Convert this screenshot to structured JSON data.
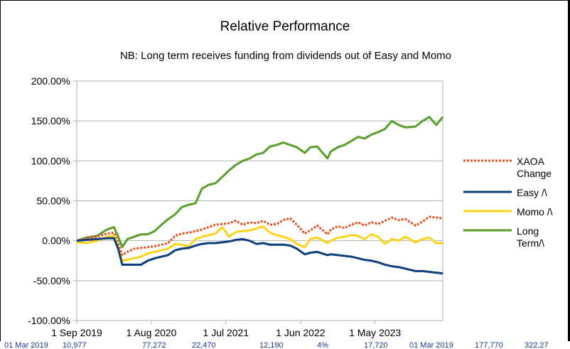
{
  "chart_data": {
    "type": "line",
    "title": "Relative Performance",
    "subtitle": "NB: Long term receives funding from dividends out of Easy and Momo",
    "xlabel": "",
    "ylabel": "",
    "x_ticks": [
      "1 Sep 2019",
      "1 Aug 2020",
      "1 Jul 2021",
      "1 Jun 2022",
      "1 May 2023"
    ],
    "y_ticks": [
      "-100.00%",
      "-50.00%",
      "0.00%",
      "50.00%",
      "100.00%",
      "150.00%",
      "200.00%"
    ],
    "ylim": [
      -100,
      200
    ],
    "x_range": [
      "2019-09-01",
      "2024-02-29"
    ],
    "grid": "horizontal",
    "legend_position": "right",
    "series": [
      {
        "name": "XAOA Change",
        "color": "#e8501e",
        "style": "dotted",
        "points": [
          [
            "2019-09-01",
            0
          ],
          [
            "2019-10-15",
            3
          ],
          [
            "2019-12-01",
            5
          ],
          [
            "2020-01-15",
            9
          ],
          [
            "2020-02-15",
            10
          ],
          [
            "2020-03-05",
            -3
          ],
          [
            "2020-03-23",
            -18
          ],
          [
            "2020-04-15",
            -14
          ],
          [
            "2020-05-15",
            -10
          ],
          [
            "2020-06-15",
            -9
          ],
          [
            "2020-07-15",
            -8
          ],
          [
            "2020-08-15",
            -7
          ],
          [
            "2020-09-15",
            -5
          ],
          [
            "2020-10-15",
            -3
          ],
          [
            "2020-11-15",
            6
          ],
          [
            "2020-12-15",
            9
          ],
          [
            "2021-01-15",
            10
          ],
          [
            "2021-02-15",
            12
          ],
          [
            "2021-03-15",
            14
          ],
          [
            "2021-04-15",
            17
          ],
          [
            "2021-05-15",
            20
          ],
          [
            "2021-06-15",
            21
          ],
          [
            "2021-07-15",
            22
          ],
          [
            "2021-08-15",
            25
          ],
          [
            "2021-09-15",
            20
          ],
          [
            "2021-10-15",
            23
          ],
          [
            "2021-11-15",
            22
          ],
          [
            "2021-12-15",
            25
          ],
          [
            "2022-01-15",
            20
          ],
          [
            "2022-02-15",
            21
          ],
          [
            "2022-03-15",
            26
          ],
          [
            "2022-04-15",
            28
          ],
          [
            "2022-05-15",
            20
          ],
          [
            "2022-06-20",
            9
          ],
          [
            "2022-07-15",
            13
          ],
          [
            "2022-08-15",
            19
          ],
          [
            "2022-09-30",
            8
          ],
          [
            "2022-10-15",
            14
          ],
          [
            "2022-11-15",
            18
          ],
          [
            "2022-12-15",
            16
          ],
          [
            "2023-01-15",
            20
          ],
          [
            "2023-02-15",
            23
          ],
          [
            "2023-03-15",
            19
          ],
          [
            "2023-04-15",
            23
          ],
          [
            "2023-05-15",
            21
          ],
          [
            "2023-06-15",
            25
          ],
          [
            "2023-07-15",
            29
          ],
          [
            "2023-08-15",
            26
          ],
          [
            "2023-09-15",
            27
          ],
          [
            "2023-10-30",
            19
          ],
          [
            "2023-11-30",
            24
          ],
          [
            "2023-12-31",
            30
          ],
          [
            "2024-01-31",
            29
          ],
          [
            "2024-02-29",
            28
          ]
        ]
      },
      {
        "name": "Easy /\\",
        "color": "#0d3d7a",
        "style": "solid",
        "points": [
          [
            "2019-09-01",
            0
          ],
          [
            "2019-10-15",
            1
          ],
          [
            "2019-12-01",
            2
          ],
          [
            "2020-01-15",
            3
          ],
          [
            "2020-02-15",
            3
          ],
          [
            "2020-03-05",
            -10
          ],
          [
            "2020-03-23",
            -30
          ],
          [
            "2020-04-15",
            -30
          ],
          [
            "2020-05-15",
            -30
          ],
          [
            "2020-06-15",
            -30
          ],
          [
            "2020-07-15",
            -25
          ],
          [
            "2020-08-15",
            -22
          ],
          [
            "2020-09-15",
            -20
          ],
          [
            "2020-10-15",
            -18
          ],
          [
            "2020-11-15",
            -12
          ],
          [
            "2020-12-15",
            -10
          ],
          [
            "2021-01-15",
            -9
          ],
          [
            "2021-02-15",
            -6
          ],
          [
            "2021-03-15",
            -4
          ],
          [
            "2021-04-15",
            -3
          ],
          [
            "2021-05-15",
            -3
          ],
          [
            "2021-06-15",
            -2
          ],
          [
            "2021-07-15",
            -1
          ],
          [
            "2021-08-15",
            1
          ],
          [
            "2021-09-15",
            2
          ],
          [
            "2021-10-15",
            0
          ],
          [
            "2021-11-15",
            -4
          ],
          [
            "2021-12-15",
            -3
          ],
          [
            "2022-01-15",
            -5
          ],
          [
            "2022-02-15",
            -5
          ],
          [
            "2022-03-15",
            -5
          ],
          [
            "2022-04-15",
            -6
          ],
          [
            "2022-05-15",
            -10
          ],
          [
            "2022-06-20",
            -17
          ],
          [
            "2022-07-15",
            -15
          ],
          [
            "2022-08-15",
            -14
          ],
          [
            "2022-09-30",
            -18
          ],
          [
            "2022-10-15",
            -17
          ],
          [
            "2022-11-15",
            -18
          ],
          [
            "2022-12-15",
            -19
          ],
          [
            "2023-01-15",
            -20
          ],
          [
            "2023-02-15",
            -22
          ],
          [
            "2023-03-15",
            -24
          ],
          [
            "2023-04-15",
            -25
          ],
          [
            "2023-05-15",
            -27
          ],
          [
            "2023-06-15",
            -30
          ],
          [
            "2023-07-15",
            -32
          ],
          [
            "2023-08-15",
            -33
          ],
          [
            "2023-09-15",
            -35
          ],
          [
            "2023-10-30",
            -38
          ],
          [
            "2023-11-30",
            -38
          ],
          [
            "2023-12-31",
            -39
          ],
          [
            "2024-01-31",
            -40
          ],
          [
            "2024-02-29",
            -41
          ]
        ]
      },
      {
        "name": "Momo /\\",
        "color": "#ffd21a",
        "style": "solid",
        "points": [
          [
            "2019-09-01",
            -2
          ],
          [
            "2019-10-15",
            -3
          ],
          [
            "2019-12-01",
            0
          ],
          [
            "2020-01-15",
            5
          ],
          [
            "2020-02-15",
            6
          ],
          [
            "2020-03-05",
            -10
          ],
          [
            "2020-03-23",
            -25
          ],
          [
            "2020-04-15",
            -24
          ],
          [
            "2020-05-15",
            -22
          ],
          [
            "2020-06-15",
            -20
          ],
          [
            "2020-07-15",
            -16
          ],
          [
            "2020-08-15",
            -14
          ],
          [
            "2020-09-15",
            -12
          ],
          [
            "2020-10-15",
            -10
          ],
          [
            "2020-11-15",
            -4
          ],
          [
            "2020-12-15",
            -5
          ],
          [
            "2021-01-15",
            -7
          ],
          [
            "2021-02-15",
            2
          ],
          [
            "2021-03-15",
            5
          ],
          [
            "2021-04-15",
            7
          ],
          [
            "2021-05-15",
            9
          ],
          [
            "2021-06-15",
            17
          ],
          [
            "2021-07-15",
            5
          ],
          [
            "2021-08-15",
            11
          ],
          [
            "2021-09-15",
            12
          ],
          [
            "2021-10-15",
            13
          ],
          [
            "2021-11-15",
            15
          ],
          [
            "2021-12-15",
            18
          ],
          [
            "2022-01-15",
            10
          ],
          [
            "2022-02-15",
            7
          ],
          [
            "2022-03-15",
            5
          ],
          [
            "2022-04-15",
            2
          ],
          [
            "2022-05-15",
            -4
          ],
          [
            "2022-06-20",
            -8
          ],
          [
            "2022-07-15",
            2
          ],
          [
            "2022-08-15",
            4
          ],
          [
            "2022-09-30",
            -3
          ],
          [
            "2022-10-15",
            0
          ],
          [
            "2022-11-15",
            4
          ],
          [
            "2022-12-15",
            5
          ],
          [
            "2023-01-15",
            7
          ],
          [
            "2023-02-15",
            6
          ],
          [
            "2023-03-15",
            2
          ],
          [
            "2023-04-15",
            8
          ],
          [
            "2023-05-15",
            5
          ],
          [
            "2023-06-15",
            -4
          ],
          [
            "2023-07-15",
            2
          ],
          [
            "2023-08-15",
            0
          ],
          [
            "2023-09-15",
            5
          ],
          [
            "2023-10-30",
            -2
          ],
          [
            "2023-11-30",
            2
          ],
          [
            "2023-12-31",
            4
          ],
          [
            "2024-01-31",
            -3
          ],
          [
            "2024-02-29",
            -3
          ]
        ]
      },
      {
        "name": "Long Term/\\",
        "color": "#5a9e2a",
        "style": "solid",
        "points": [
          [
            "2019-09-01",
            0
          ],
          [
            "2019-10-15",
            4
          ],
          [
            "2019-12-01",
            6
          ],
          [
            "2020-01-15",
            14
          ],
          [
            "2020-02-15",
            17
          ],
          [
            "2020-03-05",
            5
          ],
          [
            "2020-03-23",
            -8
          ],
          [
            "2020-04-15",
            2
          ],
          [
            "2020-05-15",
            5
          ],
          [
            "2020-06-15",
            8
          ],
          [
            "2020-07-15",
            8
          ],
          [
            "2020-08-15",
            12
          ],
          [
            "2020-09-15",
            20
          ],
          [
            "2020-10-15",
            27
          ],
          [
            "2020-11-15",
            33
          ],
          [
            "2020-12-15",
            42
          ],
          [
            "2021-01-15",
            45
          ],
          [
            "2021-02-15",
            47
          ],
          [
            "2021-03-15",
            65
          ],
          [
            "2021-04-15",
            70
          ],
          [
            "2021-05-15",
            72
          ],
          [
            "2021-06-15",
            80
          ],
          [
            "2021-07-15",
            88
          ],
          [
            "2021-08-15",
            95
          ],
          [
            "2021-09-15",
            100
          ],
          [
            "2021-10-15",
            103
          ],
          [
            "2021-11-15",
            108
          ],
          [
            "2021-12-15",
            110
          ],
          [
            "2022-01-15",
            118
          ],
          [
            "2022-02-15",
            120
          ],
          [
            "2022-03-15",
            123
          ],
          [
            "2022-04-15",
            120
          ],
          [
            "2022-05-15",
            117
          ],
          [
            "2022-06-20",
            110
          ],
          [
            "2022-07-15",
            117
          ],
          [
            "2022-08-15",
            118
          ],
          [
            "2022-09-30",
            103
          ],
          [
            "2022-10-15",
            112
          ],
          [
            "2022-11-15",
            117
          ],
          [
            "2022-12-15",
            120
          ],
          [
            "2023-01-15",
            125
          ],
          [
            "2023-02-15",
            130
          ],
          [
            "2023-03-15",
            128
          ],
          [
            "2023-04-15",
            133
          ],
          [
            "2023-05-15",
            136
          ],
          [
            "2023-06-15",
            140
          ],
          [
            "2023-07-15",
            150
          ],
          [
            "2023-08-15",
            145
          ],
          [
            "2023-09-15",
            142
          ],
          [
            "2023-10-30",
            143
          ],
          [
            "2023-11-30",
            150
          ],
          [
            "2023-12-31",
            155
          ],
          [
            "2024-01-31",
            145
          ],
          [
            "2024-02-29",
            155
          ]
        ]
      }
    ]
  },
  "legend_lines": [
    [
      "XAOA",
      "Change"
    ],
    [
      "Easy /\\"
    ],
    [
      "Momo /\\"
    ],
    [
      "Long",
      "Term/\\"
    ]
  ],
  "bottom_strip": [
    "01 Mar 2019",
    "10,977",
    "77,272",
    "22,470",
    "12,190",
    "4%",
    "17,720",
    "01 Mar 2019",
    "177,770",
    "322,27"
  ]
}
